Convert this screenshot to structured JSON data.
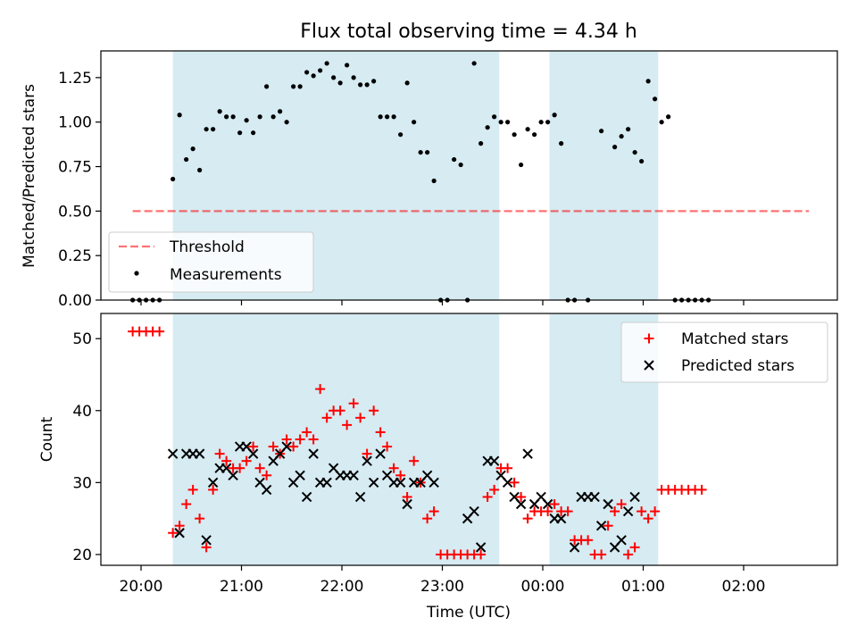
{
  "title": "Flux total observing time = 4.34 h",
  "colors": {
    "band": "#add8e6",
    "threshold": "#ff0000",
    "measurement": "#000000",
    "matched": "#ff0000",
    "predicted": "#000000"
  },
  "chart_data": [
    {
      "type": "scatter",
      "name": "ratio-panel",
      "ylabel": "Matched/Predicted stars",
      "xlabel": "",
      "ylim": [
        0,
        1.4
      ],
      "xlim": [
        "19:36",
        "02:56"
      ],
      "grid": false,
      "legend_position": "lower-left",
      "yticks": [
        0.0,
        0.25,
        0.5,
        0.75,
        1.0,
        1.25
      ],
      "ytick_labels": [
        "0.00",
        "0.25",
        "0.50",
        "0.75",
        "1.00",
        "1.25"
      ],
      "observing_windows": [
        [
          "20:19",
          "23:34"
        ],
        [
          "00:04",
          "01:09"
        ]
      ],
      "threshold": {
        "label": "Threshold",
        "value": 0.5,
        "x_range": [
          "19:55",
          "02:39"
        ]
      },
      "series": [
        {
          "name": "Measurements",
          "points": [
            [
              "19:55",
              0
            ],
            [
              "19:59",
              0
            ],
            [
              "20:03",
              0
            ],
            [
              "20:07",
              0
            ],
            [
              "20:11",
              0
            ],
            [
              "20:19",
              0.68
            ],
            [
              "20:23",
              1.04
            ],
            [
              "20:27",
              0.79
            ],
            [
              "20:31",
              0.85
            ],
            [
              "20:35",
              0.73
            ],
            [
              "20:39",
              0.96
            ],
            [
              "20:43",
              0.96
            ],
            [
              "20:47",
              1.06
            ],
            [
              "20:51",
              1.03
            ],
            [
              "20:55",
              1.03
            ],
            [
              "20:59",
              0.94
            ],
            [
              "21:03",
              1.01
            ],
            [
              "21:07",
              0.94
            ],
            [
              "21:11",
              1.03
            ],
            [
              "21:15",
              1.2
            ],
            [
              "21:19",
              1.03
            ],
            [
              "21:23",
              1.06
            ],
            [
              "21:27",
              1.0
            ],
            [
              "21:31",
              1.2
            ],
            [
              "21:35",
              1.2
            ],
            [
              "21:39",
              1.28
            ],
            [
              "21:43",
              1.26
            ],
            [
              "21:47",
              1.29
            ],
            [
              "21:51",
              1.33
            ],
            [
              "21:55",
              1.25
            ],
            [
              "21:59",
              1.22
            ],
            [
              "22:03",
              1.32
            ],
            [
              "22:07",
              1.25
            ],
            [
              "22:11",
              1.21
            ],
            [
              "22:15",
              1.21
            ],
            [
              "22:19",
              1.23
            ],
            [
              "22:23",
              1.03
            ],
            [
              "22:27",
              1.03
            ],
            [
              "22:31",
              1.03
            ],
            [
              "22:35",
              0.93
            ],
            [
              "22:39",
              1.22
            ],
            [
              "22:43",
              1.0
            ],
            [
              "22:47",
              0.83
            ],
            [
              "22:51",
              0.83
            ],
            [
              "22:55",
              0.67
            ],
            [
              "22:59",
              0
            ],
            [
              "23:03",
              0
            ],
            [
              "23:07",
              0.79
            ],
            [
              "23:11",
              0.76
            ],
            [
              "23:15",
              0
            ],
            [
              "23:19",
              1.33
            ],
            [
              "23:23",
              0.88
            ],
            [
              "23:27",
              0.97
            ],
            [
              "23:31",
              1.03
            ],
            [
              "23:35",
              1.0
            ],
            [
              "23:39",
              1.0
            ],
            [
              "23:43",
              0.93
            ],
            [
              "23:47",
              0.76
            ],
            [
              "23:51",
              0.96
            ],
            [
              "23:55",
              0.93
            ],
            [
              "23:59",
              1.0
            ],
            [
              "00:03",
              1.0
            ],
            [
              "00:07",
              1.04
            ],
            [
              "00:11",
              0.88
            ],
            [
              "00:15",
              0
            ],
            [
              "00:19",
              0
            ],
            [
              "00:27",
              0
            ],
            [
              "00:35",
              0.95
            ],
            [
              "00:43",
              0.86
            ],
            [
              "00:47",
              0.92
            ],
            [
              "00:51",
              0.96
            ],
            [
              "00:55",
              0.83
            ],
            [
              "00:59",
              0.78
            ],
            [
              "01:03",
              1.23
            ],
            [
              "01:07",
              1.13
            ],
            [
              "01:11",
              1.0
            ],
            [
              "01:15",
              1.03
            ],
            [
              "01:19",
              0
            ],
            [
              "01:23",
              0
            ],
            [
              "01:27",
              0
            ],
            [
              "01:31",
              0
            ],
            [
              "01:35",
              0
            ],
            [
              "01:39",
              0
            ]
          ]
        }
      ]
    },
    {
      "type": "scatter",
      "name": "count-panel",
      "ylabel": "Count",
      "xlabel": "Time (UTC)",
      "ylim": [
        18.5,
        53.5
      ],
      "xlim": [
        "19:36",
        "02:56"
      ],
      "grid": false,
      "legend_position": "upper-right",
      "yticks": [
        20,
        30,
        40,
        50
      ],
      "ytick_labels": [
        "20",
        "30",
        "40",
        "50"
      ],
      "xticks": [
        "20:00",
        "21:00",
        "22:00",
        "23:00",
        "00:00",
        "01:00",
        "02:00"
      ],
      "observing_windows": [
        [
          "20:19",
          "23:34"
        ],
        [
          "00:04",
          "01:09"
        ]
      ],
      "series": [
        {
          "name": "Matched stars",
          "marker": "+",
          "points": [
            [
              "19:55",
              51
            ],
            [
              "19:59",
              51
            ],
            [
              "20:03",
              51
            ],
            [
              "20:07",
              51
            ],
            [
              "20:11",
              51
            ],
            [
              "20:19",
              23
            ],
            [
              "20:23",
              24
            ],
            [
              "20:27",
              27
            ],
            [
              "20:31",
              29
            ],
            [
              "20:35",
              25
            ],
            [
              "20:39",
              21
            ],
            [
              "20:43",
              29
            ],
            [
              "20:47",
              34
            ],
            [
              "20:51",
              33
            ],
            [
              "20:55",
              32
            ],
            [
              "20:59",
              32
            ],
            [
              "21:03",
              33
            ],
            [
              "21:07",
              35
            ],
            [
              "21:11",
              32
            ],
            [
              "21:15",
              31
            ],
            [
              "21:19",
              35
            ],
            [
              "21:23",
              34
            ],
            [
              "21:27",
              36
            ],
            [
              "21:31",
              35
            ],
            [
              "21:35",
              36
            ],
            [
              "21:39",
              37
            ],
            [
              "21:43",
              36
            ],
            [
              "21:47",
              43
            ],
            [
              "21:51",
              39
            ],
            [
              "21:55",
              40
            ],
            [
              "21:59",
              40
            ],
            [
              "22:03",
              38
            ],
            [
              "22:07",
              41
            ],
            [
              "22:11",
              39
            ],
            [
              "22:15",
              34
            ],
            [
              "22:19",
              40
            ],
            [
              "22:23",
              37
            ],
            [
              "22:27",
              35
            ],
            [
              "22:31",
              32
            ],
            [
              "22:35",
              31
            ],
            [
              "22:39",
              28
            ],
            [
              "22:43",
              33
            ],
            [
              "22:47",
              30
            ],
            [
              "22:51",
              25
            ],
            [
              "22:55",
              26
            ],
            [
              "22:59",
              20
            ],
            [
              "23:03",
              20
            ],
            [
              "23:07",
              20
            ],
            [
              "23:11",
              20
            ],
            [
              "23:15",
              20
            ],
            [
              "23:19",
              20
            ],
            [
              "23:23",
              20
            ],
            [
              "23:27",
              28
            ],
            [
              "23:31",
              29
            ],
            [
              "23:35",
              32
            ],
            [
              "23:39",
              32
            ],
            [
              "23:43",
              30
            ],
            [
              "23:47",
              28
            ],
            [
              "23:51",
              25
            ],
            [
              "23:55",
              26
            ],
            [
              "23:59",
              26
            ],
            [
              "00:03",
              26
            ],
            [
              "00:07",
              27
            ],
            [
              "00:11",
              26
            ],
            [
              "00:15",
              26
            ],
            [
              "00:19",
              22
            ],
            [
              "00:23",
              22
            ],
            [
              "00:27",
              22
            ],
            [
              "00:31",
              20
            ],
            [
              "00:35",
              20
            ],
            [
              "00:39",
              24
            ],
            [
              "00:43",
              26
            ],
            [
              "00:47",
              27
            ],
            [
              "00:51",
              20
            ],
            [
              "00:55",
              21
            ],
            [
              "00:59",
              26
            ],
            [
              "01:03",
              25
            ],
            [
              "01:07",
              26
            ],
            [
              "01:11",
              29
            ],
            [
              "01:15",
              29
            ],
            [
              "01:19",
              29
            ],
            [
              "01:23",
              29
            ],
            [
              "01:27",
              29
            ],
            [
              "01:31",
              29
            ],
            [
              "01:35",
              29
            ]
          ]
        },
        {
          "name": "Predicted stars",
          "marker": "x",
          "points": [
            [
              "20:19",
              34
            ],
            [
              "20:23",
              23
            ],
            [
              "20:27",
              34
            ],
            [
              "20:31",
              34
            ],
            [
              "20:35",
              34
            ],
            [
              "20:39",
              22
            ],
            [
              "20:43",
              30
            ],
            [
              "20:47",
              32
            ],
            [
              "20:51",
              32
            ],
            [
              "20:55",
              31
            ],
            [
              "20:59",
              35
            ],
            [
              "21:03",
              35
            ],
            [
              "21:07",
              34
            ],
            [
              "21:11",
              30
            ],
            [
              "21:15",
              29
            ],
            [
              "21:19",
              33
            ],
            [
              "21:23",
              34
            ],
            [
              "21:27",
              35
            ],
            [
              "21:31",
              30
            ],
            [
              "21:35",
              31
            ],
            [
              "21:39",
              28
            ],
            [
              "21:43",
              34
            ],
            [
              "21:47",
              30
            ],
            [
              "21:51",
              30
            ],
            [
              "21:55",
              32
            ],
            [
              "21:59",
              31
            ],
            [
              "22:03",
              31
            ],
            [
              "22:07",
              31
            ],
            [
              "22:11",
              28
            ],
            [
              "22:15",
              33
            ],
            [
              "22:19",
              30
            ],
            [
              "22:23",
              34
            ],
            [
              "22:27",
              31
            ],
            [
              "22:31",
              30
            ],
            [
              "22:35",
              30
            ],
            [
              "22:39",
              27
            ],
            [
              "22:43",
              30
            ],
            [
              "22:47",
              30
            ],
            [
              "22:51",
              31
            ],
            [
              "22:55",
              30
            ],
            [
              "23:15",
              25
            ],
            [
              "23:19",
              26
            ],
            [
              "23:23",
              21
            ],
            [
              "23:27",
              33
            ],
            [
              "23:31",
              33
            ],
            [
              "23:35",
              31
            ],
            [
              "23:39",
              30
            ],
            [
              "23:43",
              28
            ],
            [
              "23:47",
              27
            ],
            [
              "23:51",
              34
            ],
            [
              "23:55",
              27
            ],
            [
              "23:59",
              28
            ],
            [
              "00:03",
              27
            ],
            [
              "00:07",
              25
            ],
            [
              "00:11",
              25
            ],
            [
              "00:19",
              21
            ],
            [
              "00:23",
              28
            ],
            [
              "00:27",
              28
            ],
            [
              "00:31",
              28
            ],
            [
              "00:35",
              24
            ],
            [
              "00:39",
              27
            ],
            [
              "00:43",
              21
            ],
            [
              "00:47",
              22
            ],
            [
              "00:51",
              26
            ],
            [
              "00:55",
              28
            ]
          ]
        }
      ]
    }
  ]
}
